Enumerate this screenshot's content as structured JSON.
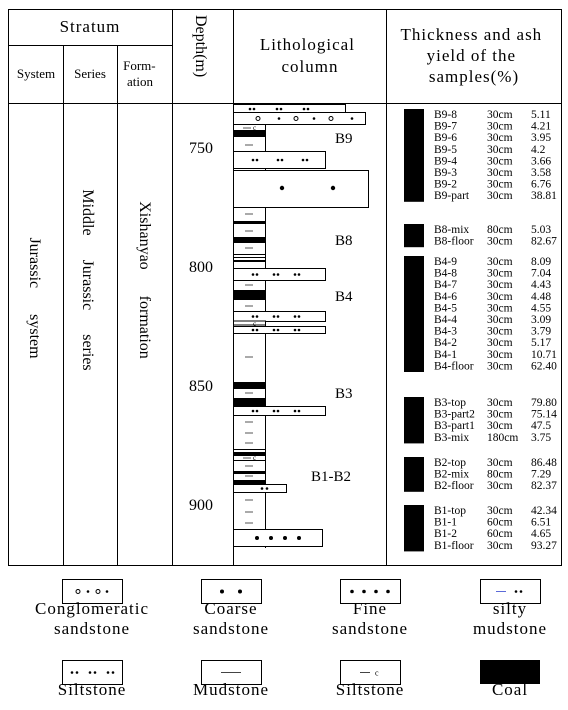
{
  "header": {
    "stratum": "Stratum",
    "system": "System",
    "series": "Series",
    "formation": "Form-ation",
    "depth": "Depth(m)",
    "lithological_column": "Lithological column",
    "thickness_ash": "Thickness and ash yield of the samples(%)"
  },
  "stratum": {
    "system": "Jurassic system",
    "series": "Middle Jurassic series",
    "formation": "Xishanyao formation"
  },
  "depth_ticks": [
    "750",
    "800",
    "850",
    "900"
  ],
  "seam_labels": [
    "B9",
    "B8",
    "B4",
    "B3",
    "B1-B2"
  ],
  "sample_groups": [
    {
      "name": "B9",
      "samples": [
        {
          "name": "B9-8",
          "thickness": "30cm",
          "ash": "5.11"
        },
        {
          "name": "B9-7",
          "thickness": "30cm",
          "ash": "4.21"
        },
        {
          "name": "B9-6",
          "thickness": "30cm",
          "ash": "3.95"
        },
        {
          "name": "B9-5",
          "thickness": "30cm",
          "ash": "4.2"
        },
        {
          "name": "B9-4",
          "thickness": "30cm",
          "ash": "3.66"
        },
        {
          "name": "B9-3",
          "thickness": "30cm",
          "ash": "3.58"
        },
        {
          "name": "B9-2",
          "thickness": "30cm",
          "ash": "6.76"
        },
        {
          "name": "B9-part",
          "thickness": "30cm",
          "ash": "38.81"
        }
      ]
    },
    {
      "name": "B8",
      "samples": [
        {
          "name": "B8-mix",
          "thickness": "80cm",
          "ash": "5.03"
        },
        {
          "name": "B8-floor",
          "thickness": "30cm",
          "ash": "82.67"
        }
      ]
    },
    {
      "name": "B4",
      "samples": [
        {
          "name": "B4-9",
          "thickness": "30cm",
          "ash": "8.09"
        },
        {
          "name": "B4-8",
          "thickness": "30cm",
          "ash": "7.04"
        },
        {
          "name": "B4-7",
          "thickness": "30cm",
          "ash": "4.43"
        },
        {
          "name": "B4-6",
          "thickness": "30cm",
          "ash": "4.48"
        },
        {
          "name": "B4-5",
          "thickness": "30cm",
          "ash": "4.55"
        },
        {
          "name": "B4-4",
          "thickness": "30cm",
          "ash": "3.09"
        },
        {
          "name": "B4-3",
          "thickness": "30cm",
          "ash": "3.79"
        },
        {
          "name": "B4-2",
          "thickness": "30cm",
          "ash": "5.17"
        },
        {
          "name": "B4-1",
          "thickness": "30cm",
          "ash": "10.71"
        },
        {
          "name": "B4-floor",
          "thickness": "30cm",
          "ash": "62.40"
        }
      ]
    },
    {
      "name": "B3",
      "samples": [
        {
          "name": "B3-top",
          "thickness": "30cm",
          "ash": "79.80"
        },
        {
          "name": "B3-part2",
          "thickness": "30cm",
          "ash": "75.14"
        },
        {
          "name": "B3-part1",
          "thickness": "30cm",
          "ash": "47.5"
        },
        {
          "name": "B3-mix",
          "thickness": "180cm",
          "ash": "3.75"
        }
      ]
    },
    {
      "name": "B2",
      "samples": [
        {
          "name": "B2-top",
          "thickness": "30cm",
          "ash": "86.48"
        },
        {
          "name": "B2-mix",
          "thickness": "80cm",
          "ash": "7.29"
        },
        {
          "name": "B2-floor",
          "thickness": "30cm",
          "ash": "82.37"
        }
      ]
    },
    {
      "name": "B1",
      "samples": [
        {
          "name": "B1-top",
          "thickness": "30cm",
          "ash": "42.34"
        },
        {
          "name": "B1-1",
          "thickness": "60cm",
          "ash": "6.51"
        },
        {
          "name": "B1-2",
          "thickness": "60cm",
          "ash": "4.65"
        },
        {
          "name": "B1-floor",
          "thickness": "30cm",
          "ash": "93.27"
        }
      ]
    }
  ],
  "legend": [
    {
      "id": "conglomeratic-sandstone",
      "label": "Conglomeratic sandstone",
      "pattern": "conglomeratic"
    },
    {
      "id": "coarse-sandstone",
      "label": "Coarse sandstone",
      "pattern": "coarse"
    },
    {
      "id": "fine-sandstone",
      "label": "Fine sandstone",
      "pattern": "fine"
    },
    {
      "id": "silty-mudstone",
      "label": "silty mudstone",
      "pattern": "silty-mudstone"
    },
    {
      "id": "siltstone",
      "label": "Siltstone",
      "pattern": "siltstone"
    },
    {
      "id": "mudstone",
      "label": "Mudstone",
      "pattern": "mudstone"
    },
    {
      "id": "siltstone-2",
      "label": "Siltstone",
      "pattern": "siltstone-alt"
    },
    {
      "id": "coal",
      "label": "Coal",
      "pattern": "coal"
    }
  ],
  "colors": {
    "coal": "#000000",
    "line": "#000000",
    "silty_dash": "#5b6ad8"
  }
}
